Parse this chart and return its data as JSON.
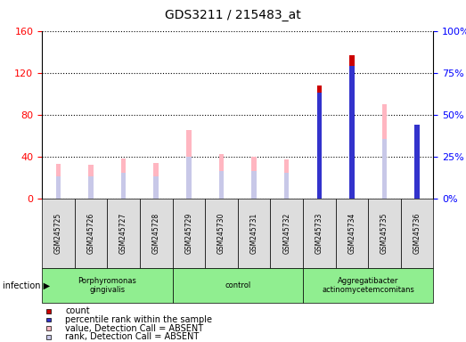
{
  "title": "GDS3211 / 215483_at",
  "samples": [
    "GSM245725",
    "GSM245726",
    "GSM245727",
    "GSM245728",
    "GSM245729",
    "GSM245730",
    "GSM245731",
    "GSM245732",
    "GSM245733",
    "GSM245734",
    "GSM245735",
    "GSM245736"
  ],
  "groups": [
    {
      "label": "Porphyromonas\ngingivalis",
      "start": 0,
      "end": 4,
      "color": "#90EE90"
    },
    {
      "label": "control",
      "start": 4,
      "end": 8,
      "color": "#90EE90"
    },
    {
      "label": "Aggregatibacter\nactinomycetemcomitans",
      "start": 8,
      "end": 12,
      "color": "#90EE90"
    }
  ],
  "count_values": [
    null,
    null,
    null,
    null,
    null,
    null,
    null,
    null,
    108,
    137,
    null,
    70
  ],
  "rank_values": [
    null,
    null,
    null,
    null,
    null,
    null,
    null,
    null,
    63,
    79,
    null,
    44
  ],
  "absent_value": [
    33,
    32,
    38,
    34,
    65,
    42,
    40,
    37,
    null,
    null,
    90,
    null
  ],
  "absent_rank": [
    21,
    21,
    24,
    21,
    40,
    26,
    26,
    24,
    null,
    null,
    57,
    null
  ],
  "ylim_left": [
    0,
    160
  ],
  "ylim_right": [
    0,
    100
  ],
  "yticks_left": [
    0,
    40,
    80,
    120,
    160
  ],
  "yticks_right": [
    0,
    25,
    50,
    75,
    100
  ],
  "count_color": "#CC0000",
  "rank_color": "#3333CC",
  "absent_value_color": "#FFB6C1",
  "absent_rank_color": "#C8C8E8",
  "legend_items": [
    {
      "color": "#CC0000",
      "label": "count"
    },
    {
      "color": "#3333CC",
      "label": "percentile rank within the sample"
    },
    {
      "color": "#FFB6C1",
      "label": "value, Detection Call = ABSENT"
    },
    {
      "color": "#C8C8E8",
      "label": "rank, Detection Call = ABSENT"
    }
  ]
}
